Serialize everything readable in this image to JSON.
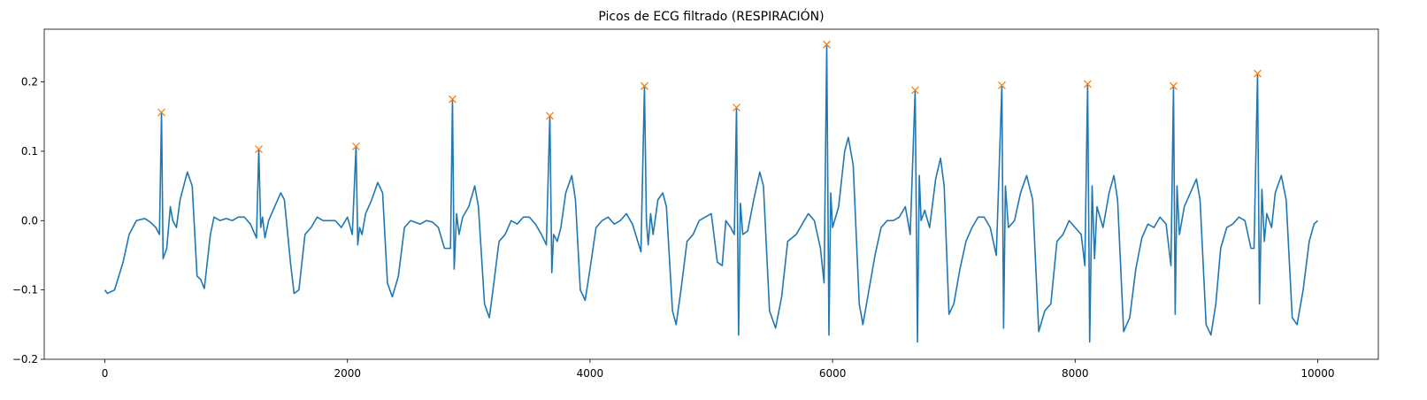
{
  "chart_data": {
    "type": "line",
    "title": "Picos de ECG filtrado (RESPIRACIÓN)",
    "xlim": [
      -500,
      10500
    ],
    "ylim": [
      -0.2,
      0.276
    ],
    "xticks": [
      0,
      2000,
      4000,
      6000,
      8000,
      10000
    ],
    "yticks": [
      {
        "value": -0.2,
        "label": "−0.2"
      },
      {
        "value": -0.1,
        "label": "−0.1"
      },
      {
        "value": 0,
        "label": "0.0"
      },
      0.1,
      0.2
    ],
    "series": [
      {
        "color": "#1f77b4",
        "x": [
          0,
          20,
          80,
          150,
          200,
          260,
          330,
          380,
          420,
          450,
          467,
          480,
          510,
          540,
          560,
          590,
          620,
          680,
          720,
          760,
          790,
          820,
          870,
          900,
          950,
          1000,
          1050,
          1100,
          1150,
          1200,
          1250,
          1269,
          1285,
          1300,
          1320,
          1350,
          1400,
          1450,
          1480,
          1530,
          1560,
          1600,
          1650,
          1700,
          1750,
          1800,
          1850,
          1900,
          1950,
          2000,
          2040,
          2071,
          2085,
          2100,
          2120,
          2150,
          2200,
          2250,
          2290,
          2330,
          2370,
          2420,
          2470,
          2520,
          2600,
          2650,
          2700,
          2750,
          2800,
          2850,
          2866,
          2880,
          2900,
          2920,
          2950,
          3000,
          3050,
          3080,
          3130,
          3170,
          3200,
          3250,
          3300,
          3350,
          3400,
          3450,
          3500,
          3550,
          3600,
          3640,
          3669,
          3685,
          3700,
          3730,
          3760,
          3800,
          3850,
          3880,
          3920,
          3960,
          4000,
          4050,
          4100,
          4150,
          4200,
          4250,
          4300,
          4350,
          4420,
          4449,
          4465,
          4480,
          4500,
          4520,
          4560,
          4600,
          4630,
          4680,
          4710,
          4750,
          4800,
          4850,
          4900,
          4950,
          5000,
          5050,
          5090,
          5120,
          5160,
          5190,
          5208,
          5225,
          5240,
          5260,
          5300,
          5350,
          5400,
          5430,
          5480,
          5530,
          5580,
          5630,
          5700,
          5750,
          5800,
          5850,
          5900,
          5930,
          5952,
          5970,
          5985,
          6000,
          6050,
          6100,
          6130,
          6170,
          6220,
          6250,
          6300,
          6350,
          6400,
          6450,
          6500,
          6550,
          6600,
          6640,
          6681,
          6700,
          6715,
          6730,
          6760,
          6800,
          6850,
          6890,
          6920,
          6960,
          7000,
          7050,
          7100,
          7150,
          7200,
          7250,
          7300,
          7350,
          7396,
          7410,
          7425,
          7450,
          7500,
          7550,
          7600,
          7650,
          7700,
          7750,
          7800,
          7850,
          7900,
          7950,
          8000,
          8050,
          8080,
          8103,
          8120,
          8140,
          8160,
          8180,
          8230,
          8280,
          8320,
          8350,
          8400,
          8450,
          8500,
          8550,
          8600,
          8650,
          8700,
          8750,
          8790,
          8811,
          8825,
          8840,
          8860,
          8900,
          8950,
          9000,
          9030,
          9080,
          9120,
          9160,
          9200,
          9250,
          9300,
          9350,
          9400,
          9450,
          9475,
          9504,
          9520,
          9540,
          9560,
          9580,
          9620,
          9650,
          9700,
          9740,
          9790,
          9830,
          9880,
          9930,
          9970,
          10000
        ],
        "values": [
          -0.1,
          -0.105,
          -0.1,
          -0.06,
          -0.02,
          0,
          0.003,
          -0.003,
          -0.01,
          -0.02,
          0.156,
          -0.055,
          -0.04,
          0.02,
          0,
          -0.01,
          0.03,
          0.07,
          0.05,
          -0.08,
          -0.085,
          -0.098,
          -0.02,
          0.005,
          0,
          0.003,
          0,
          0.005,
          0.005,
          -0.005,
          -0.025,
          0.103,
          -0.01,
          0.005,
          -0.025,
          0,
          0.02,
          0.04,
          0.03,
          -0.06,
          -0.105,
          -0.1,
          -0.02,
          -0.01,
          0.005,
          0,
          0,
          0,
          -0.01,
          0.005,
          -0.02,
          0.107,
          -0.035,
          -0.01,
          -0.02,
          0.01,
          0.03,
          0.055,
          0.04,
          -0.09,
          -0.11,
          -0.08,
          -0.01,
          0,
          -0.005,
          0,
          -0.002,
          -0.01,
          -0.04,
          -0.04,
          0.175,
          -0.07,
          0.01,
          -0.02,
          0.005,
          0.02,
          0.05,
          0.02,
          -0.12,
          -0.14,
          -0.1,
          -0.03,
          -0.02,
          0,
          -0.005,
          0.005,
          0.005,
          -0.005,
          -0.02,
          -0.035,
          0.151,
          -0.075,
          -0.02,
          -0.03,
          -0.01,
          0.04,
          0.065,
          0.03,
          -0.1,
          -0.115,
          -0.07,
          -0.01,
          0,
          0.005,
          -0.005,
          0,
          0.01,
          -0.005,
          -0.045,
          0.194,
          0,
          -0.035,
          0.01,
          -0.02,
          0.03,
          0.04,
          0.02,
          -0.13,
          -0.15,
          -0.1,
          -0.03,
          -0.02,
          0,
          0.005,
          0.01,
          -0.06,
          -0.065,
          0,
          -0.01,
          -0.02,
          0.163,
          -0.165,
          0.025,
          -0.02,
          -0.015,
          0.03,
          0.07,
          0.05,
          -0.13,
          -0.155,
          -0.11,
          -0.03,
          -0.02,
          -0.005,
          0.01,
          0,
          -0.04,
          -0.09,
          0.254,
          -0.165,
          0.04,
          -0.01,
          0.02,
          0.1,
          0.12,
          0.08,
          -0.12,
          -0.15,
          -0.1,
          -0.05,
          -0.01,
          0,
          0,
          0.005,
          0.02,
          -0.02,
          0.188,
          -0.175,
          0.065,
          0,
          0.015,
          -0.01,
          0.06,
          0.09,
          0.05,
          -0.135,
          -0.12,
          -0.07,
          -0.03,
          -0.01,
          0.005,
          0.005,
          -0.01,
          -0.05,
          0.195,
          -0.155,
          0.05,
          -0.01,
          0,
          0.04,
          0.065,
          0.03,
          -0.16,
          -0.13,
          -0.12,
          -0.03,
          -0.02,
          0,
          -0.01,
          -0.02,
          -0.065,
          0.197,
          -0.175,
          0.05,
          -0.055,
          0.02,
          -0.01,
          0.04,
          0.065,
          0.03,
          -0.16,
          -0.14,
          -0.07,
          -0.025,
          -0.005,
          -0.01,
          0.005,
          -0.005,
          -0.065,
          0.194,
          -0.135,
          0.05,
          -0.02,
          0.02,
          0.04,
          0.06,
          0.03,
          -0.15,
          -0.165,
          -0.12,
          -0.04,
          -0.01,
          -0.005,
          0.005,
          0,
          -0.04,
          -0.04,
          0.212,
          -0.12,
          0.045,
          -0.03,
          0.01,
          -0.01,
          0.04,
          0.065,
          0.03,
          -0.14,
          -0.15,
          -0.1,
          -0.03,
          -0.005,
          0
        ]
      },
      {
        "color": "#ff7f0e",
        "marker": "x",
        "x": [
          467,
          1269,
          2071,
          2866,
          3669,
          4449,
          5208,
          5952,
          6681,
          7396,
          8103,
          8811,
          9504
        ],
        "values": [
          0.156,
          0.103,
          0.107,
          0.175,
          0.151,
          0.194,
          0.163,
          0.254,
          0.188,
          0.195,
          0.197,
          0.194,
          0.212
        ]
      }
    ]
  }
}
